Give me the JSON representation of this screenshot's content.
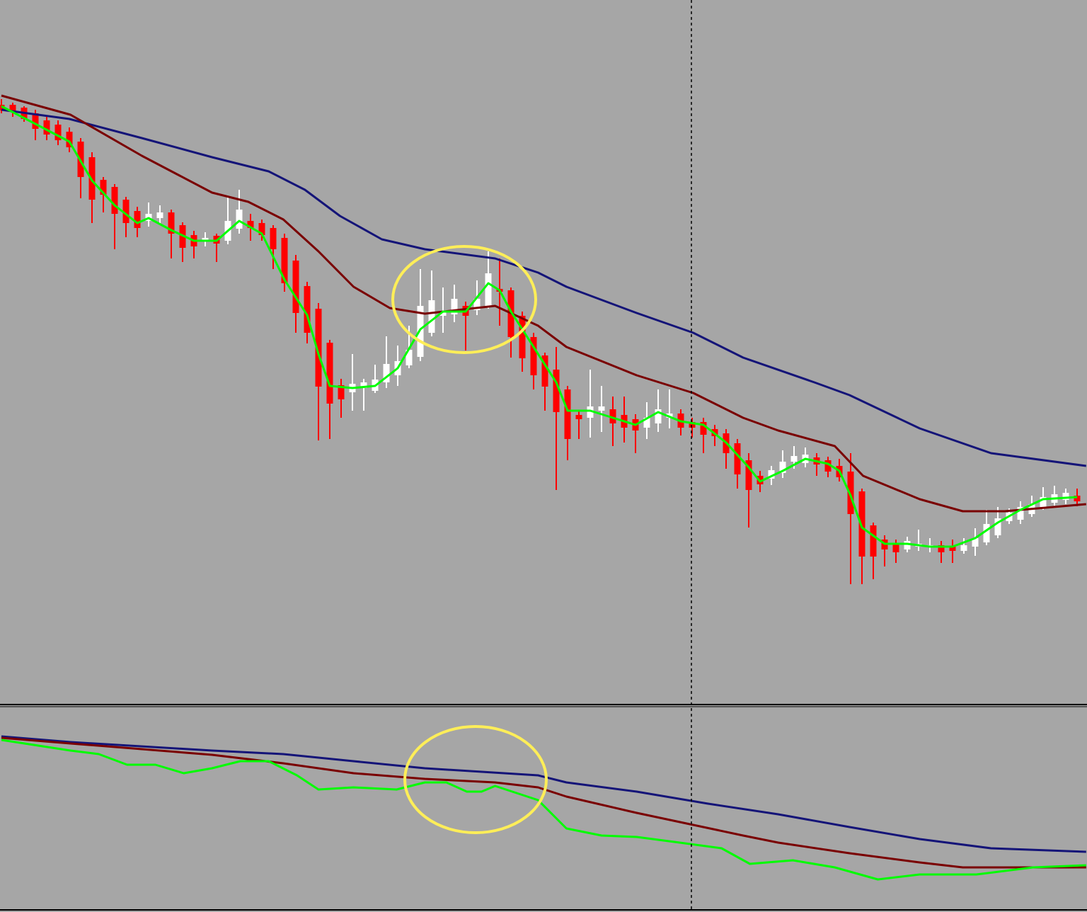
{
  "chart_data": [
    {
      "type": "candlestick",
      "xlim": [
        -0.125,
        95.875
      ],
      "ylim": [
        5,
        1000
      ],
      "up_color": "#ffffff",
      "down_color": "#ff0000",
      "open": [
        852,
        852,
        848,
        840,
        830,
        824,
        814,
        800,
        778,
        746,
        736,
        718,
        702,
        688,
        692,
        700,
        682,
        668,
        660,
        667,
        660,
        677,
        688,
        685,
        678,
        664,
        632,
        596,
        564,
        516,
        456,
        446,
        452,
        448,
        460,
        470,
        484,
        496,
        530,
        554,
        556,
        568,
        562,
        568,
        592,
        590,
        554,
        524,
        498,
        478,
        450,
        414,
        410,
        420,
        422,
        414,
        408,
        396,
        402,
        410,
        416,
        404,
        404,
        394,
        388,
        374,
        350,
        328,
        324,
        332,
        348,
        346,
        354,
        350,
        342,
        334,
        306,
        258,
        238,
        232,
        224,
        228,
        230,
        230,
        228,
        222,
        228,
        234,
        244,
        264,
        266,
        274,
        284,
        290,
        294,
        300
      ],
      "high": [
        860,
        855,
        850,
        845,
        835,
        830,
        820,
        805,
        785,
        750,
        740,
        722,
        708,
        714,
        710,
        704,
        686,
        674,
        672,
        670,
        722,
        732,
        698,
        690,
        682,
        670,
        640,
        602,
        572,
        520,
        465,
        500,
        465,
        485,
        525,
        512,
        540,
        620,
        618,
        594,
        598,
        574,
        604,
        645,
        635,
        594,
        560,
        530,
        502,
        510,
        455,
        420,
        478,
        455,
        440,
        440,
        415,
        432,
        450,
        450,
        422,
        410,
        410,
        400,
        394,
        380,
        360,
        335,
        342,
        364,
        370,
        368,
        360,
        355,
        352,
        360,
        310,
        262,
        244,
        238,
        242,
        252,
        240,
        236,
        238,
        240,
        254,
        280,
        284,
        282,
        292,
        300,
        312,
        314,
        310,
        310
      ],
      "low": [
        840,
        835,
        828,
        802,
        802,
        795,
        785,
        720,
        685,
        700,
        648,
        665,
        665,
        680,
        682,
        635,
        630,
        635,
        652,
        630,
        655,
        670,
        660,
        660,
        620,
        588,
        530,
        515,
        378,
        380,
        410,
        420,
        420,
        445,
        452,
        455,
        480,
        490,
        525,
        530,
        545,
        505,
        555,
        564,
        540,
        495,
        475,
        450,
        420,
        308,
        350,
        380,
        382,
        390,
        370,
        375,
        360,
        380,
        390,
        395,
        385,
        382,
        360,
        370,
        338,
        310,
        255,
        305,
        315,
        325,
        338,
        340,
        328,
        326,
        320,
        175,
        175,
        182,
        200,
        205,
        220,
        222,
        220,
        205,
        205,
        218,
        215,
        230,
        240,
        260,
        260,
        270,
        280,
        286,
        288,
        285
      ],
      "close": [
        844,
        842,
        832,
        818,
        810,
        802,
        792,
        750,
        718,
        725,
        698,
        685,
        678,
        698,
        700,
        670,
        650,
        652,
        664,
        656,
        688,
        704,
        678,
        668,
        648,
        600,
        558,
        530,
        454,
        430,
        436,
        458,
        460,
        464,
        486,
        490,
        506,
        568,
        576,
        560,
        578,
        554,
        578,
        614,
        588,
        524,
        494,
        470,
        454,
        418,
        380,
        408,
        426,
        426,
        402,
        396,
        392,
        410,
        422,
        416,
        396,
        396,
        386,
        384,
        360,
        330,
        308,
        316,
        336,
        348,
        356,
        358,
        344,
        334,
        326,
        274,
        214,
        214,
        224,
        220,
        236,
        232,
        230,
        220,
        222,
        230,
        240,
        260,
        268,
        276,
        284,
        288,
        298,
        302,
        304,
        292
      ],
      "series": [
        {
          "color": "#141478",
          "x": [
            0,
            6,
            12.4,
            18.6,
            23.6,
            26.8,
            29.9,
            33.6,
            37.4,
            43.6,
            47.4,
            49.9,
            56.1,
            61.1,
            65.5,
            71.8,
            74.9,
            81.1,
            87.4,
            95.8
          ],
          "values": [
            845,
            832,
            805,
            778,
            758,
            732,
            695,
            662,
            648,
            635,
            615,
            595,
            558,
            530,
            495,
            460,
            442,
            395,
            360,
            342
          ]
        },
        {
          "color": "#7a0000",
          "x": [
            0,
            6.1,
            12.4,
            18.6,
            21.8,
            24.9,
            28,
            31.1,
            34.3,
            37.4,
            43.6,
            47.4,
            49.9,
            56.1,
            61.1,
            65.5,
            68.6,
            73.6,
            76.1,
            81.1,
            84.9,
            88.6,
            95.8
          ],
          "values": [
            865,
            838,
            780,
            728,
            715,
            690,
            645,
            595,
            565,
            557,
            568,
            540,
            510,
            470,
            445,
            410,
            392,
            370,
            328,
            295,
            278,
            278,
            288
          ]
        },
        {
          "color": "#00ff00",
          "x": [
            0,
            3,
            6,
            8,
            10,
            12,
            13,
            15,
            17,
            19,
            21,
            23,
            25,
            27,
            28,
            29,
            31,
            33,
            35,
            37,
            39,
            41,
            43,
            44,
            45,
            47,
            49,
            50,
            52,
            54,
            56,
            58,
            60,
            62,
            64,
            66,
            67,
            69,
            71,
            73,
            74,
            75,
            76,
            78,
            80,
            82,
            84,
            86,
            88,
            90,
            92,
            95
          ],
          "values": [
            850,
            825,
            800,
            745,
            710,
            685,
            692,
            675,
            660,
            660,
            688,
            670,
            605,
            555,
            500,
            455,
            452,
            455,
            480,
            535,
            560,
            560,
            600,
            590,
            560,
            510,
            460,
            420,
            420,
            410,
            400,
            418,
            405,
            400,
            375,
            340,
            320,
            335,
            352,
            345,
            335,
            300,
            255,
            232,
            232,
            228,
            228,
            240,
            262,
            280,
            295,
            298
          ]
        }
      ]
    },
    {
      "type": "line",
      "xlim": [
        -0.125,
        95.875
      ],
      "ylim": [
        15,
        302
      ],
      "series": [
        {
          "color": "#141478",
          "x": [
            0,
            6.1,
            18.6,
            24.9,
            31.1,
            37.4,
            47.4,
            49.9,
            56.1,
            62.4,
            68.6,
            74.9,
            81.1,
            87.4,
            95.8
          ],
          "values": [
            260,
            252,
            240,
            235,
            225,
            215,
            205,
            195,
            182,
            165,
            150,
            132,
            115,
            102,
            97
          ]
        },
        {
          "color": "#7a0000",
          "x": [
            0,
            6.1,
            12.4,
            18.6,
            24.9,
            31.1,
            37.4,
            43.6,
            47.4,
            49.9,
            56.1,
            61.1,
            65.5,
            68.6,
            74.9,
            81.1,
            84.9,
            95.8
          ],
          "values": [
            258,
            250,
            242,
            234,
            222,
            208,
            200,
            195,
            188,
            175,
            152,
            135,
            120,
            110,
            95,
            82,
            75,
            75
          ]
        },
        {
          "color": "#00ff00",
          "x": [
            0,
            6.1,
            8.6,
            11.1,
            13.6,
            16.1,
            18.6,
            21.1,
            23.6,
            26.1,
            28,
            31.1,
            34.9,
            37.4,
            39.3,
            41.1,
            42.4,
            43.6,
            47.4,
            49.9,
            53,
            56.1,
            59.9,
            63.6,
            66.1,
            69.9,
            73.6,
            77.4,
            81.1,
            86.1,
            91.1,
            95.8
          ],
          "values": [
            255,
            240,
            235,
            220,
            220,
            208,
            215,
            225,
            225,
            205,
            185,
            188,
            185,
            195,
            195,
            182,
            182,
            190,
            170,
            130,
            120,
            118,
            110,
            102,
            80,
            85,
            75,
            58,
            65,
            65,
            75,
            78
          ]
        }
      ]
    }
  ]
}
